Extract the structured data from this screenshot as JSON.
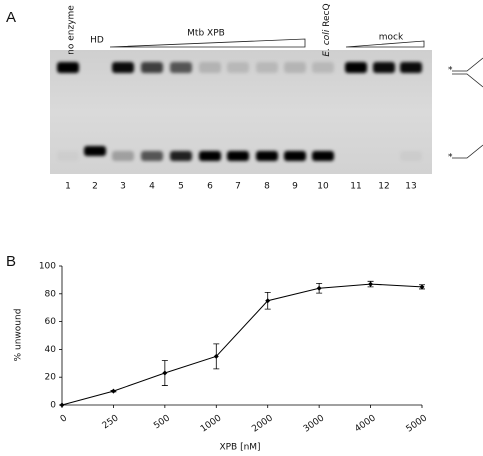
{
  "panels": [
    "A",
    "B"
  ],
  "gel": {
    "labels": {
      "no_enzyme": "no enzyme",
      "hd": "HD",
      "mtb": "Mtb XPB",
      "ecoli": "E. coli",
      "recq": "RecQ",
      "mock": "mock"
    },
    "lanes": [
      "1",
      "2",
      "3",
      "4",
      "5",
      "6",
      "7",
      "8",
      "9",
      "10",
      "11",
      "12",
      "13"
    ],
    "asterisk": "*"
  },
  "chart_data": {
    "type": "line",
    "x_label": "XPB [nM]",
    "y_label": "% unwound",
    "categories": [
      "0",
      "250",
      "500",
      "1000",
      "2000",
      "3000",
      "4000",
      "5000"
    ],
    "series": [
      {
        "name": "XPB",
        "color": "#000000",
        "values": [
          0,
          10,
          23,
          35,
          75,
          84,
          87,
          85
        ],
        "errors": [
          0,
          0.5,
          9,
          9,
          6,
          3.5,
          2,
          1.5
        ]
      }
    ],
    "ylim": [
      0,
      100
    ],
    "yticks": [
      0,
      20,
      40,
      60,
      80,
      100
    ]
  }
}
